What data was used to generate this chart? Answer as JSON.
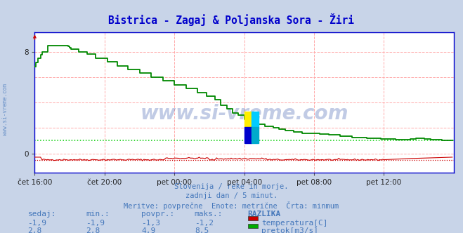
{
  "title": "Bistrica - Zagaj & Poljanska Sora - Žiri",
  "title_color": "#0000cc",
  "bg_color": "#c8d4e8",
  "plot_bg_color": "#ffffff",
  "xlabel_ticks": [
    "čet 16:00",
    "čet 20:00",
    "pet 00:00",
    "pet 04:00",
    "pet 08:00",
    "pet 12:00"
  ],
  "ytick_labels": [
    "0",
    "8"
  ],
  "ytick_vals": [
    0,
    8
  ],
  "ylim": [
    -1.5,
    9.5
  ],
  "xlim": [
    0,
    288
  ],
  "tick_positions": [
    0,
    48,
    96,
    144,
    192,
    240
  ],
  "grid_color": "#ffaaaa",
  "watermark": "www.si-vreme.com",
  "subtitle_lines": [
    "Slovenija / reke in morje.",
    "zadnji dan / 5 minut.",
    "Meritve: povprečne  Enote: metrične  Črta: minmum"
  ],
  "subtitle_color": "#4477bb",
  "table_headers": [
    "sedaj:",
    "min.:",
    "povpr.:",
    "maks.:",
    "RAZLIKA"
  ],
  "table_row1": [
    "-1,9",
    "-1,9",
    "-1,3",
    "-1,2"
  ],
  "table_row2": [
    "2,8",
    "2,8",
    "4,9",
    "8,5"
  ],
  "legend_labels": [
    "temperatura[C]",
    "pretok[m3/s]"
  ],
  "legend_colors": [
    "#cc0000",
    "#00aa00"
  ],
  "temp_color": "#cc0000",
  "flow_color": "#008800",
  "flow_dotted_color": "#00cc00",
  "axis_line_color": "#0000cc",
  "temp_dotted_y": -0.5,
  "flow_dotted_y": 1.0,
  "n_points": 288
}
